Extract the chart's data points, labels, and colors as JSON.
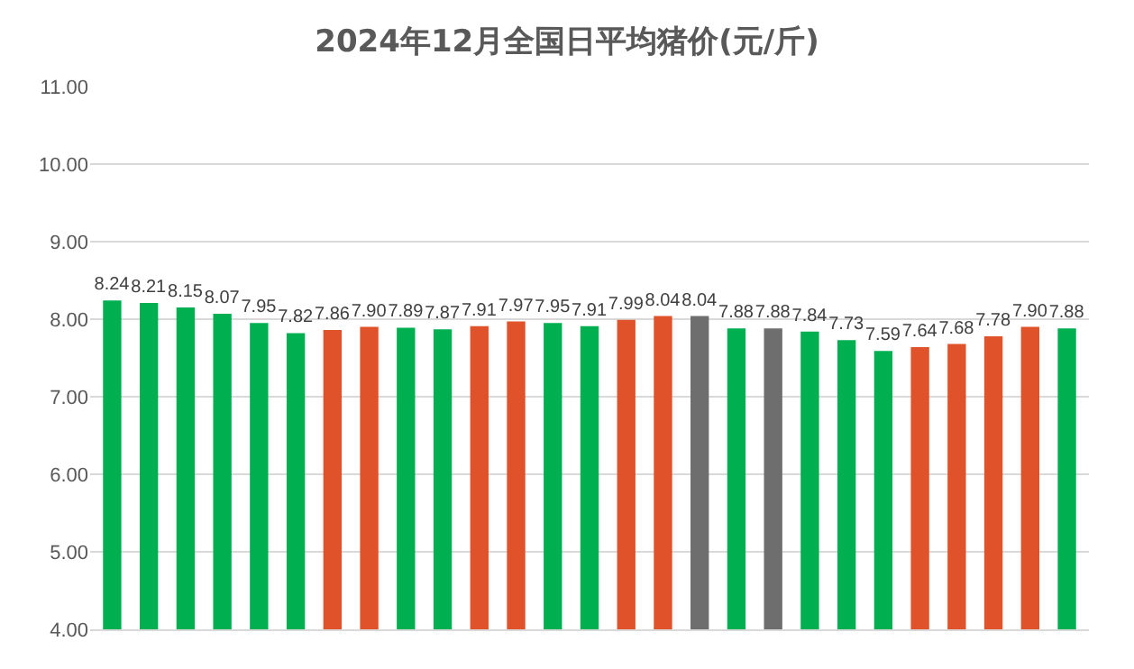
{
  "chart_data": {
    "type": "bar",
    "title": "2024年12月全国日平均猪价(元/斤)",
    "categories": [
      null,
      null,
      null,
      null,
      null,
      null,
      null,
      null,
      null,
      null,
      null,
      null,
      null,
      null,
      null,
      null,
      null,
      null,
      null,
      null,
      null,
      null,
      null,
      null,
      null,
      null,
      null
    ],
    "values": [
      8.24,
      8.21,
      8.15,
      8.07,
      7.95,
      7.82,
      7.86,
      7.9,
      7.89,
      7.87,
      7.91,
      7.97,
      7.95,
      7.91,
      7.99,
      8.04,
      8.04,
      7.88,
      7.88,
      7.84,
      7.73,
      7.59,
      7.64,
      7.68,
      7.78,
      7.9,
      7.88
    ],
    "colors": [
      "#00b050",
      "#00b050",
      "#00b050",
      "#00b050",
      "#00b050",
      "#00b050",
      "#e0532a",
      "#e0532a",
      "#00b050",
      "#00b050",
      "#e0532a",
      "#e0532a",
      "#00b050",
      "#00b050",
      "#e0532a",
      "#e0532a",
      "#6e6e6e",
      "#00b050",
      "#6e6e6e",
      "#00b050",
      "#00b050",
      "#00b050",
      "#e0532a",
      "#e0532a",
      "#e0532a",
      "#e0532a",
      "#00b050"
    ],
    "ylim": [
      4,
      11
    ],
    "yticks": [
      {
        "value": 4,
        "label": "4.00"
      },
      {
        "value": 5,
        "label": "5.00"
      },
      {
        "value": 6,
        "label": "6.00"
      },
      {
        "value": 7,
        "label": "7.00"
      },
      {
        "value": 8,
        "label": "8.00"
      },
      {
        "value": 9,
        "label": "9.00"
      },
      {
        "value": 10,
        "label": "10.00"
      },
      {
        "value": 11,
        "label": "11.00"
      }
    ],
    "value_labels": [
      "8.24",
      "8.21",
      "8.15",
      "8.07",
      "7.95",
      "7.82",
      "7.86",
      "7.90",
      "7.89",
      "7.87",
      "7.91",
      "7.97",
      "7.95",
      "7.91",
      "7.99",
      "8.04",
      "8.04",
      "7.88",
      "7.88",
      "7.84",
      "7.73",
      "7.59",
      "7.64",
      "7.68",
      "7.78",
      "7.90",
      "7.88"
    ],
    "grid": "y"
  }
}
